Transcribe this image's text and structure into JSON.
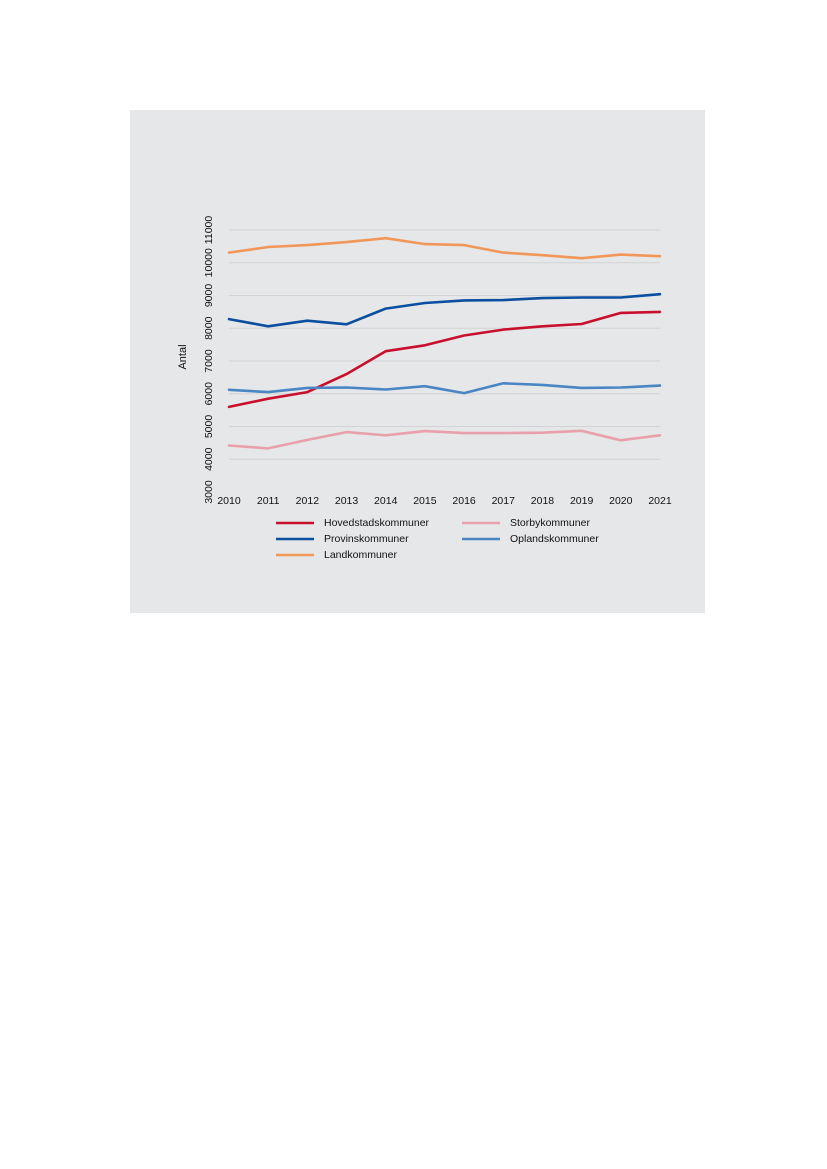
{
  "chart_data": {
    "type": "line",
    "title": "",
    "xlabel": "",
    "ylabel": "Antal",
    "x": [
      2010,
      2011,
      2012,
      2013,
      2014,
      2015,
      2016,
      2017,
      2018,
      2019,
      2020,
      2021
    ],
    "ylim": [
      3000,
      11000
    ],
    "yticks": [
      3000,
      4000,
      5000,
      6000,
      7000,
      8000,
      9000,
      10000,
      11000
    ],
    "grid": true,
    "legend": "bottom",
    "series": [
      {
        "name": "Hovedstadskommuner",
        "color": "#c8102e",
        "values": [
          5600,
          5850,
          6050,
          6600,
          7300,
          7480,
          7780,
          7960,
          8060,
          8130,
          8470,
          8500
        ]
      },
      {
        "name": "Storbykommuner",
        "color": "#e8a1ac",
        "values": [
          4420,
          4330,
          4590,
          4830,
          4730,
          4860,
          4800,
          4800,
          4810,
          4870,
          4580,
          4730
        ]
      },
      {
        "name": "Provinskommuner",
        "color": "#0a4fa0",
        "values": [
          8280,
          8060,
          8230,
          8120,
          8600,
          8770,
          8850,
          8860,
          8920,
          8940,
          8940,
          9040
        ]
      },
      {
        "name": "Oplandskommuner",
        "color": "#4a86c4",
        "values": [
          6120,
          6050,
          6180,
          6190,
          6130,
          6230,
          6020,
          6320,
          6270,
          6180,
          6190,
          6250
        ]
      },
      {
        "name": "Landkommuner",
        "color": "#f2975a",
        "values": [
          10310,
          10480,
          10540,
          10630,
          10750,
          10570,
          10540,
          10310,
          10230,
          10140,
          10250,
          10200
        ]
      }
    ]
  }
}
